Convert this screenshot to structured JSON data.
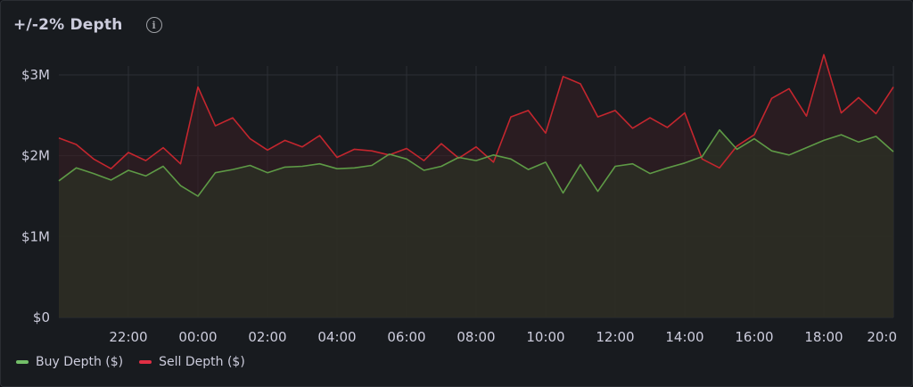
{
  "panel": {
    "title": "+/-2% Depth",
    "info_icon": "info-circle-icon"
  },
  "legend": [
    {
      "label": "Buy Depth ($)",
      "color": "#73bf69"
    },
    {
      "label": "Sell Depth ($)",
      "color": "#e02f44"
    }
  ],
  "colors": {
    "background": "#181b1f",
    "grid": "#2c2f35",
    "buy": "#5e9a46",
    "sell": "#c4262e",
    "buy_fill": "#2b2d23",
    "sell_fill": "#3a1d22"
  },
  "chart_data": {
    "type": "area",
    "title": "+/-2% Depth",
    "xlabel": "",
    "ylabel": "",
    "ylim": [
      0,
      3000000
    ],
    "y_ticks": [
      {
        "value": 0,
        "label": "$0"
      },
      {
        "value": 1000000,
        "label": "$1M"
      },
      {
        "value": 2000000,
        "label": "$2M"
      },
      {
        "value": 3000000,
        "label": "$3M"
      }
    ],
    "x_range_hours": [
      20.0,
      44.0
    ],
    "x_ticks": [
      {
        "value": 22,
        "label": "22:00"
      },
      {
        "value": 24,
        "label": "00:00"
      },
      {
        "value": 26,
        "label": "02:00"
      },
      {
        "value": 28,
        "label": "04:00"
      },
      {
        "value": 30,
        "label": "06:00"
      },
      {
        "value": 32,
        "label": "08:00"
      },
      {
        "value": 34,
        "label": "10:00"
      },
      {
        "value": 36,
        "label": "12:00"
      },
      {
        "value": 38,
        "label": "14:00"
      },
      {
        "value": 40,
        "label": "16:00"
      },
      {
        "value": 42,
        "label": "18:00"
      },
      {
        "value": 44,
        "label": "20:0"
      }
    ],
    "grid": true,
    "legend_position": "bottom-left",
    "x": [
      20.0,
      20.5,
      21.0,
      21.5,
      22.0,
      22.5,
      23.0,
      23.5,
      24.0,
      24.5,
      25.0,
      25.5,
      26.0,
      26.5,
      27.0,
      27.5,
      28.0,
      28.5,
      29.0,
      29.5,
      30.0,
      30.5,
      31.0,
      31.5,
      32.0,
      32.5,
      33.0,
      33.5,
      34.0,
      34.5,
      35.0,
      35.5,
      36.0,
      36.5,
      37.0,
      37.5,
      38.0,
      38.5,
      39.0,
      39.5,
      40.0,
      40.5,
      41.0,
      41.5,
      42.0,
      42.5,
      43.0,
      43.5,
      44.0
    ],
    "series": [
      {
        "name": "Buy Depth ($)",
        "values": [
          1690000,
          1850000,
          1780000,
          1700000,
          1820000,
          1750000,
          1870000,
          1630000,
          1500000,
          1790000,
          1830000,
          1880000,
          1790000,
          1860000,
          1870000,
          1900000,
          1840000,
          1850000,
          1880000,
          2020000,
          1960000,
          1820000,
          1870000,
          1980000,
          1940000,
          2010000,
          1960000,
          1830000,
          1920000,
          1540000,
          1890000,
          1560000,
          1870000,
          1900000,
          1780000,
          1850000,
          1910000,
          1990000,
          2320000,
          2080000,
          2210000,
          2060000,
          2010000,
          2100000,
          2190000,
          2260000,
          2170000,
          2240000,
          2050000
        ]
      },
      {
        "name": "Sell Depth ($)",
        "values": [
          2220000,
          2140000,
          1960000,
          1840000,
          2040000,
          1940000,
          2100000,
          1900000,
          2850000,
          2370000,
          2470000,
          2210000,
          2070000,
          2190000,
          2110000,
          2250000,
          1980000,
          2080000,
          2060000,
          2010000,
          2090000,
          1940000,
          2150000,
          1970000,
          2110000,
          1920000,
          2480000,
          2560000,
          2280000,
          2980000,
          2890000,
          2480000,
          2560000,
          2340000,
          2470000,
          2350000,
          2530000,
          1960000,
          1850000,
          2120000,
          2260000,
          2710000,
          2830000,
          2490000,
          3250000,
          2530000,
          2720000,
          2520000,
          2850000
        ]
      }
    ]
  }
}
